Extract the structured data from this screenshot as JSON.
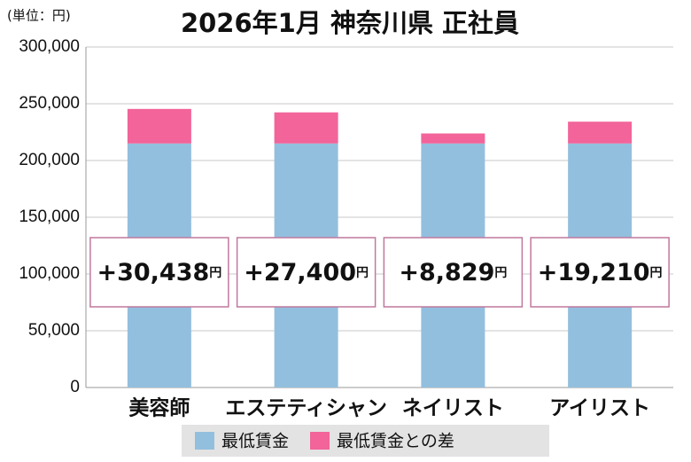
{
  "chart_data": {
    "type": "stacked_bar",
    "title": "2026年1月 神奈川県 正社員",
    "unit_note": "(単位：円)",
    "categories": [
      "美容師",
      "エステティシャン",
      "ネイリスト",
      "アイリスト"
    ],
    "series": [
      {
        "name": "最低賃金",
        "color": "#93bfde",
        "values": [
          215000,
          215000,
          215000,
          215000
        ]
      },
      {
        "name": "最低賃金との差",
        "color": "#f2649a",
        "values": [
          30438,
          27400,
          8829,
          19210
        ],
        "value_labels": [
          "+30,438",
          "+27,400",
          "+8,829",
          "+19,210"
        ],
        "value_label_unit": "円"
      }
    ],
    "ylim": [
      0,
      300000
    ],
    "yticks": [
      0,
      {
        "value": 50000,
        "label": "50,000"
      },
      {
        "value": 100000,
        "label": "100,000"
      },
      {
        "value": 150000,
        "label": "150,000"
      },
      {
        "value": 200000,
        "label": "200,000"
      },
      {
        "value": 250000,
        "label": "250,000"
      },
      {
        "value": 300000,
        "label": "300,000"
      }
    ],
    "grid": true
  }
}
